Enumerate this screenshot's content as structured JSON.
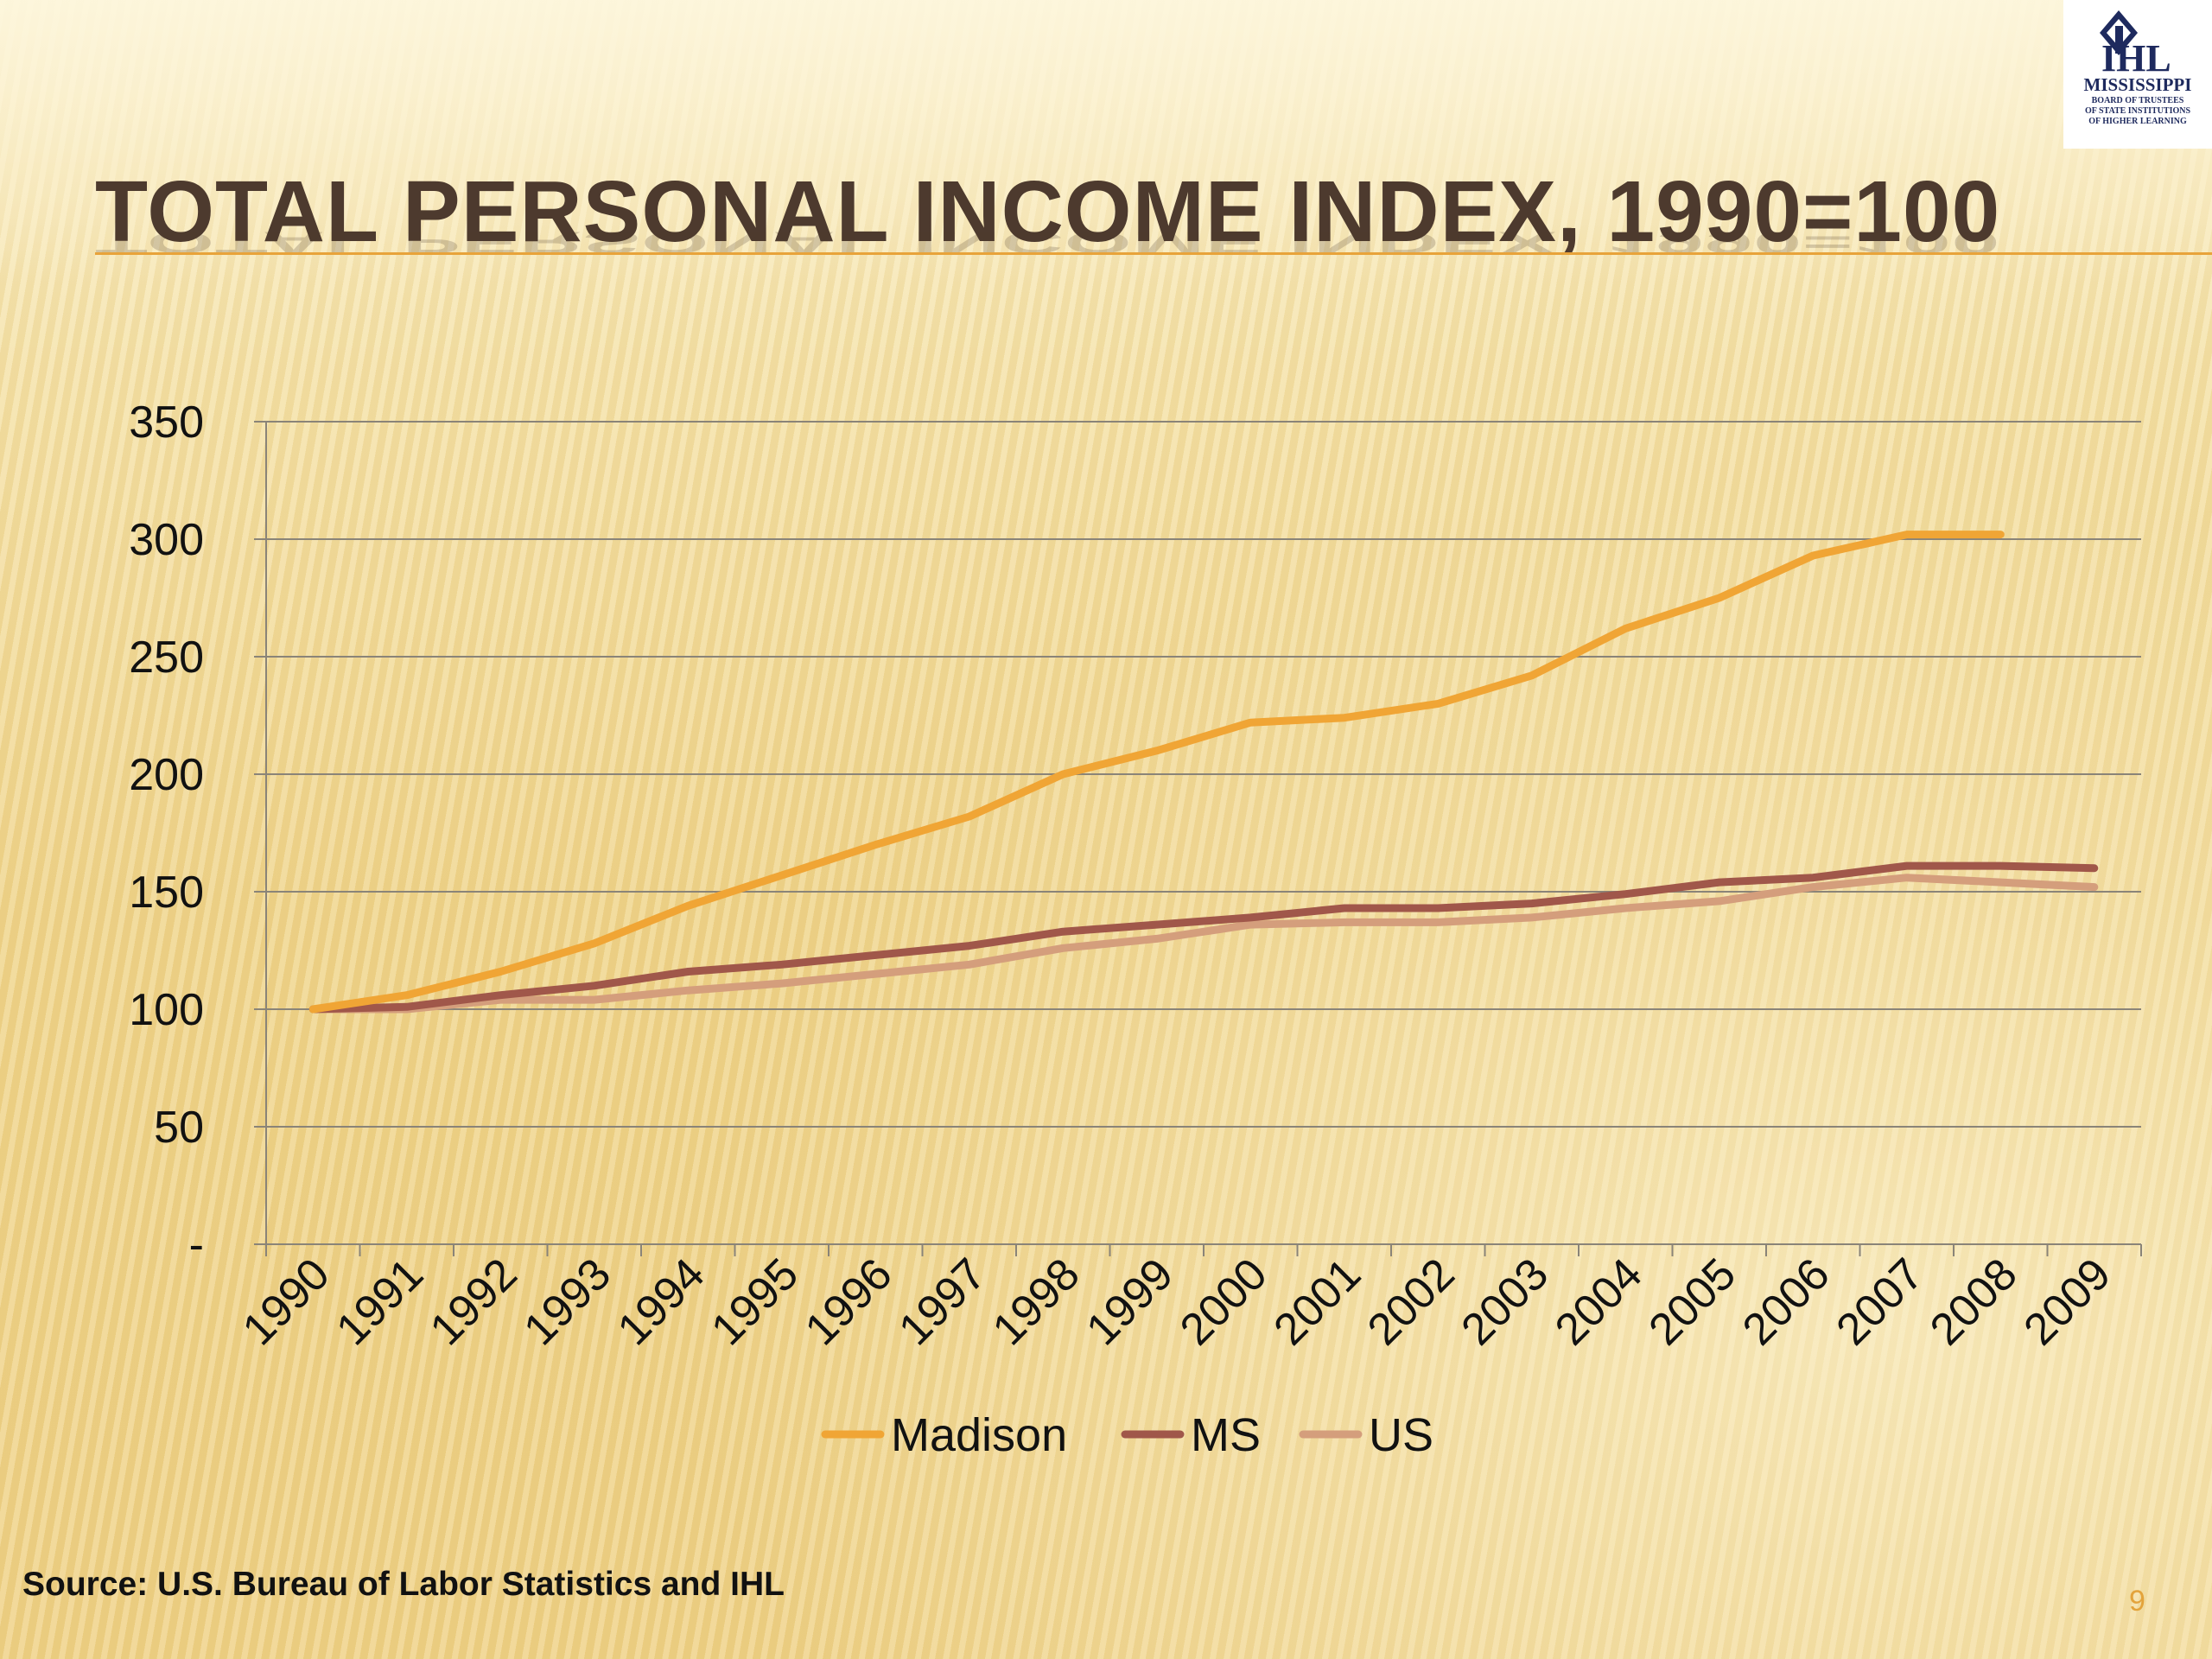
{
  "slide": {
    "title": "TOTAL PERSONAL INCOME INDEX, 1990=100",
    "source": "Source: U.S. Bureau of Labor Statistics and IHL",
    "page_number": "9",
    "logo": {
      "mark": "IHL",
      "line1": "MISSISSIPPI",
      "line2": "BOARD OF TRUSTEES",
      "line3": "OF STATE INSTITUTIONS",
      "line4": "OF HIGHER LEARNING",
      "icon": "ihl-diamond-logo"
    }
  },
  "chart_data": {
    "type": "line",
    "title": "",
    "xlabel": "",
    "ylabel": "",
    "categories": [
      "1990",
      "1991",
      "1992",
      "1993",
      "1994",
      "1995",
      "1996",
      "1997",
      "1998",
      "1999",
      "2000",
      "2001",
      "2002",
      "2003",
      "2004",
      "2005",
      "2006",
      "2007",
      "2008",
      "2009"
    ],
    "ylim": [
      0,
      350
    ],
    "yticks": [
      0,
      50,
      100,
      150,
      200,
      250,
      300,
      350
    ],
    "ytick_labels": [
      "-",
      "50",
      "100",
      "150",
      "200",
      "250",
      "300",
      "350"
    ],
    "grid": true,
    "legend_position": "bottom",
    "series": [
      {
        "name": "Madison",
        "color": "#f0a535",
        "values": [
          100,
          106,
          116,
          128,
          144,
          157,
          170,
          182,
          200,
          210,
          222,
          224,
          230,
          242,
          262,
          275,
          293,
          302,
          302,
          null
        ]
      },
      {
        "name": "MS",
        "color": "#a0574a",
        "values": [
          100,
          101,
          106,
          110,
          116,
          119,
          123,
          127,
          133,
          136,
          139,
          143,
          143,
          145,
          149,
          154,
          156,
          161,
          161,
          160
        ]
      },
      {
        "name": "US",
        "color": "#d49e7c",
        "values": [
          100,
          100,
          104,
          104,
          108,
          111,
          115,
          119,
          126,
          130,
          136,
          137,
          137,
          139,
          143,
          146,
          152,
          156,
          154,
          152
        ]
      }
    ]
  }
}
